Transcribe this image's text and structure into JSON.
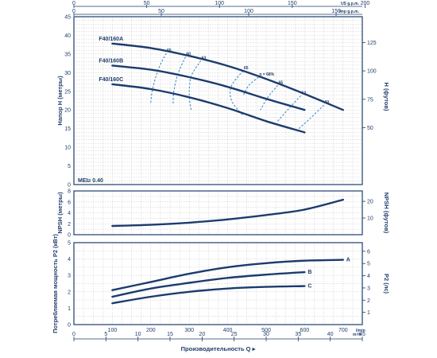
{
  "chart_data": [
    {
      "type": "line",
      "panel": "head",
      "ylabel": "Напор H (метры)",
      "ylabel_right": "H (футов)",
      "xlabel": "",
      "ylim": [
        0,
        45
      ],
      "xlim": [
        0,
        750
      ],
      "y_ticks": [
        0,
        5,
        10,
        15,
        20,
        25,
        30,
        35,
        40,
        45
      ],
      "y_ticks_right": [
        50,
        75,
        100,
        125
      ],
      "series": [
        {
          "name": "F40/160A",
          "x": [
            100,
            200,
            300,
            400,
            500,
            600,
            700
          ],
          "y": [
            37.8,
            36.6,
            34.5,
            31.8,
            28.3,
            24.3,
            20.0
          ]
        },
        {
          "name": "F40/160B",
          "x": [
            100,
            200,
            300,
            400,
            500,
            600
          ],
          "y": [
            31.9,
            30.8,
            28.8,
            26.2,
            23.0,
            20.0
          ]
        },
        {
          "name": "F40/160C",
          "x": [
            100,
            200,
            300,
            400,
            500,
            600
          ],
          "y": [
            26.9,
            25.6,
            23.4,
            20.5,
            17.0,
            14.0
          ]
        }
      ],
      "efficiency_curves": [
        {
          "label": "55",
          "x": [
            240,
            220,
            205,
            200
          ],
          "y": [
            35.2,
            31.0,
            25.8,
            22.0
          ]
        },
        {
          "label": "60",
          "x": [
            290,
            270,
            260,
            258
          ],
          "y": [
            34.2,
            29.5,
            25.0,
            21.6
          ]
        },
        {
          "label": "63",
          "x": [
            330,
            305,
            300,
            305
          ],
          "y": [
            33.2,
            29.0,
            24.0,
            20.0
          ]
        },
        {
          "label": "65",
          "x": [
            440,
            410,
            410,
            440
          ],
          "y": [
            30.5,
            26.5,
            22.5,
            18.5
          ]
        },
        {
          "label": "η = 68%",
          "x": [
            480,
            455,
            440
          ],
          "y": [
            28.8,
            26.6,
            23.8
          ]
        },
        {
          "label": "65",
          "x": [
            530,
            505,
            485
          ],
          "y": [
            26.6,
            23.5,
            20.0
          ]
        },
        {
          "label": "63",
          "x": [
            590,
            560,
            530
          ],
          "y": [
            23.8,
            20.5,
            17.0
          ]
        },
        {
          "label": "60",
          "x": [
            650,
            615,
            585
          ],
          "y": [
            21.3,
            17.8,
            15.0
          ]
        }
      ],
      "efficiency_label_values": [
        "55",
        "60",
        "63",
        "65",
        "η = 68%",
        "65",
        "63",
        "60"
      ],
      "annotation": "MEI≥ 0.40"
    },
    {
      "type": "line",
      "panel": "npsh",
      "ylabel": "NPSH (метры)",
      "ylabel_right": "NPSH (футов)",
      "ylim": [
        0,
        8
      ],
      "y_ticks": [
        0,
        2,
        4,
        6,
        8
      ],
      "y_ticks_right": [
        10,
        20
      ],
      "series": [
        {
          "name": "",
          "x": [
            100,
            200,
            300,
            400,
            500,
            600,
            700
          ],
          "y": [
            1.6,
            1.8,
            2.2,
            2.8,
            3.6,
            4.6,
            6.4
          ]
        }
      ]
    },
    {
      "type": "line",
      "panel": "power",
      "ylabel": "Потребляемая мощность P2 (кВт)",
      "ylabel_right": "P2 (лс)",
      "ylim": [
        0,
        5
      ],
      "y_ticks": [
        0,
        1,
        2,
        3,
        4,
        5
      ],
      "y_ticks_right": [
        1,
        2,
        3,
        4,
        5,
        6
      ],
      "x_ticks": [
        100,
        200,
        300,
        400,
        500,
        600,
        700
      ],
      "x_unit": "l/min",
      "series": [
        {
          "name": "A",
          "x": [
            100,
            200,
            300,
            400,
            500,
            600,
            700
          ],
          "y": [
            2.1,
            2.6,
            3.1,
            3.5,
            3.75,
            3.9,
            3.95
          ]
        },
        {
          "name": "B",
          "x": [
            100,
            200,
            300,
            400,
            500,
            600
          ],
          "y": [
            1.7,
            2.2,
            2.55,
            2.85,
            3.05,
            3.2
          ]
        },
        {
          "name": "C",
          "x": [
            100,
            200,
            300,
            400,
            500,
            600
          ],
          "y": [
            1.3,
            1.7,
            2.0,
            2.2,
            2.3,
            2.35
          ]
        }
      ]
    }
  ],
  "top_axis_usgpm": {
    "unit": "US g.p.m.",
    "ticks": [
      0,
      50,
      100,
      150,
      200
    ]
  },
  "top_axis_impgpm": {
    "unit": "Imp g.p.m.",
    "ticks": [
      0,
      50,
      100,
      150
    ]
  },
  "bottom_axis_m3h": {
    "unit": "m³/h",
    "ticks": [
      0,
      5,
      10,
      15,
      20,
      25,
      30,
      35,
      40,
      45
    ]
  },
  "x_title": "Производительность Q"
}
